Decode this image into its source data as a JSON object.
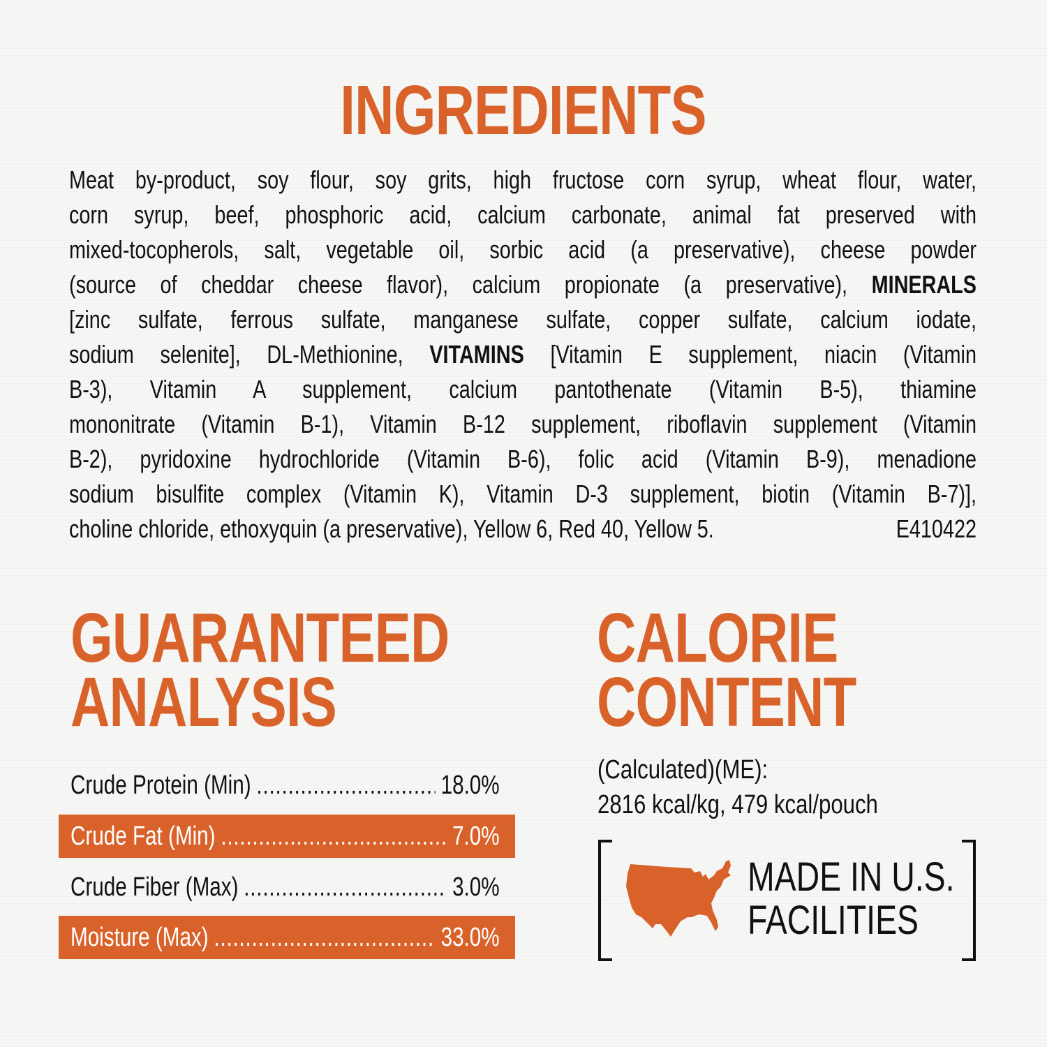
{
  "ingredients": {
    "title": "INGREDIENTS",
    "lines": [
      "Meat by-product, soy flour, soy grits, high fructose corn syrup, wheat flour, water,",
      "corn syrup, beef, phosphoric acid, calcium carbonate, animal fat preserved with",
      "mixed-tocopherols, salt, vegetable oil, sorbic acid (a preservative), cheese powder",
      "(source of cheddar cheese flavor), calcium propionate (a preservative),",
      "[zinc sulfate, ferrous sulfate, manganese sulfate, copper sulfate, calcium iodate,",
      "sodium selenite], DL-Methionine,",
      "[Vitamin E supplement, niacin (Vitamin",
      "B-3), Vitamin A supplement, calcium pantothenate (Vitamin B-5), thiamine",
      "mononitrate (Vitamin B-1), Vitamin B-12 supplement, riboflavin supplement (Vitamin",
      "B-2), pyridoxine hydrochloride (Vitamin B-6), folic acid (Vitamin B-9), menadione",
      "sodium bisulfite complex (Vitamin K), Vitamin D-3 supplement, biotin (Vitamin B-7)],",
      "choline chloride, ethoxyquin (a preservative), Yellow 6, Red 40, Yellow 5."
    ],
    "minerals_label": "MINERALS",
    "vitamins_label": "VITAMINS",
    "code": "E410422"
  },
  "guaranteed_analysis": {
    "title_line1": "GUARANTEED",
    "title_line2": "ANALYSIS",
    "rows": [
      {
        "label": "Crude Protein (Min)",
        "value": "18.0%",
        "highlight": false
      },
      {
        "label": "Crude Fat (Min)",
        "value": "7.0%",
        "highlight": true
      },
      {
        "label": "Crude Fiber (Max)",
        "value": "3.0%",
        "highlight": false
      },
      {
        "label": "Moisture (Max)",
        "value": "33.0%",
        "highlight": true
      }
    ]
  },
  "calorie_content": {
    "title_line1": "CALORIE",
    "title_line2": "CONTENT",
    "method": "(Calculated)(ME):",
    "values": "2816 kcal/kg, 479 kcal/pouch"
  },
  "made_in": {
    "icon": "usa-map-icon",
    "line1": "MADE IN U.S.",
    "line2": "FACILITIES"
  },
  "colors": {
    "accent": "#d9622b",
    "text": "#111111",
    "background": "#f6f6f4"
  }
}
